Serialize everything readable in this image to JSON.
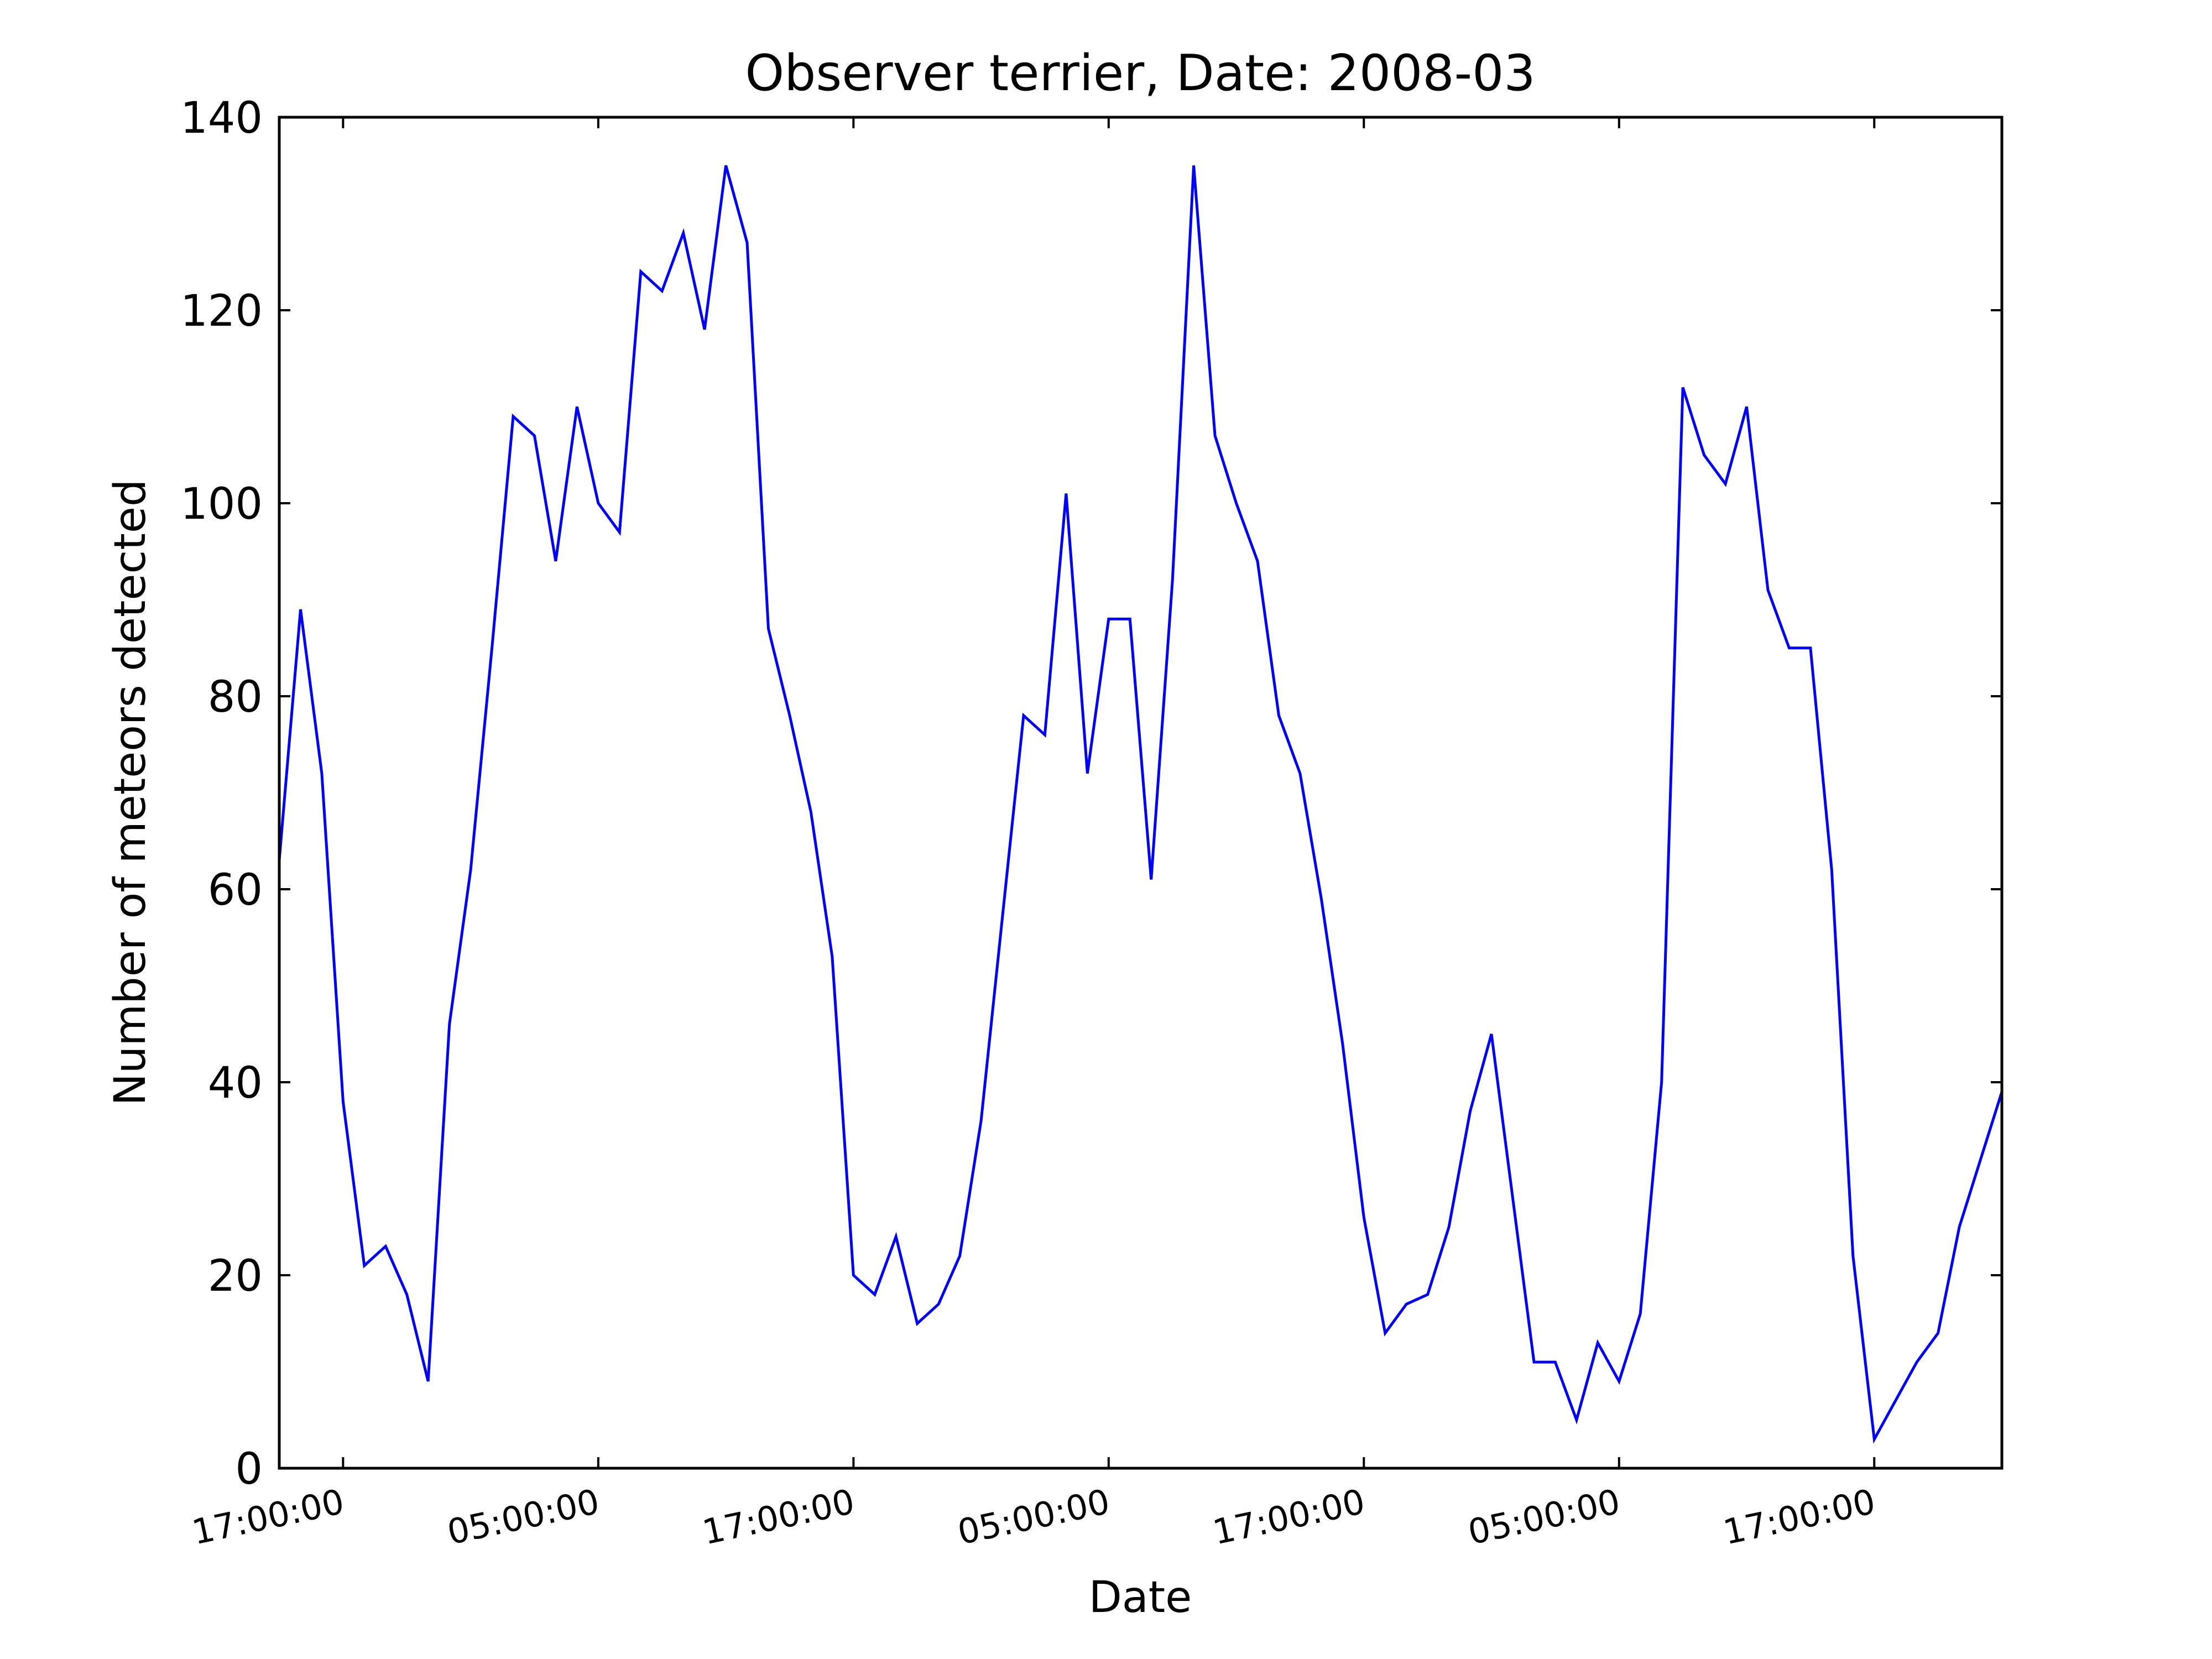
{
  "chart_data": {
    "type": "line",
    "title": "Observer terrier, Date: 2008-03",
    "xlabel": "Date",
    "ylabel": "Number of meteors detected",
    "x_unit": "hour",
    "x_start": "14:00:00",
    "xlim": [
      0,
      81
    ],
    "ylim": [
      0,
      140
    ],
    "y_ticks": [
      0,
      20,
      40,
      60,
      80,
      100,
      120,
      140
    ],
    "x_ticks": [
      {
        "hour": 3,
        "label": "17:00:00"
      },
      {
        "hour": 15,
        "label": "05:00:00"
      },
      {
        "hour": 27,
        "label": "17:00:00"
      },
      {
        "hour": 39,
        "label": "05:00:00"
      },
      {
        "hour": 51,
        "label": "17:00:00"
      },
      {
        "hour": 63,
        "label": "05:00:00"
      },
      {
        "hour": 75,
        "label": "17:00:00"
      }
    ],
    "grid": false,
    "series": [
      {
        "color": "#0000ff",
        "values": [
          63,
          89,
          72,
          38,
          21,
          23,
          18,
          9,
          46,
          62,
          85,
          109,
          107,
          94,
          110,
          100,
          97,
          124,
          122,
          128,
          118,
          135,
          127,
          87,
          78,
          68,
          53,
          20,
          18,
          24,
          15,
          17,
          22,
          36,
          57,
          78,
          76,
          101,
          72,
          88,
          88,
          61,
          92,
          135,
          107,
          100,
          94,
          78,
          72,
          59,
          44,
          26,
          14,
          17,
          18,
          25,
          37,
          45,
          28,
          11,
          11,
          5,
          13,
          9,
          16,
          40,
          112,
          105,
          102,
          110,
          91,
          85,
          85,
          62,
          22,
          3,
          7,
          11,
          14,
          25,
          32,
          39
        ]
      }
    ]
  }
}
